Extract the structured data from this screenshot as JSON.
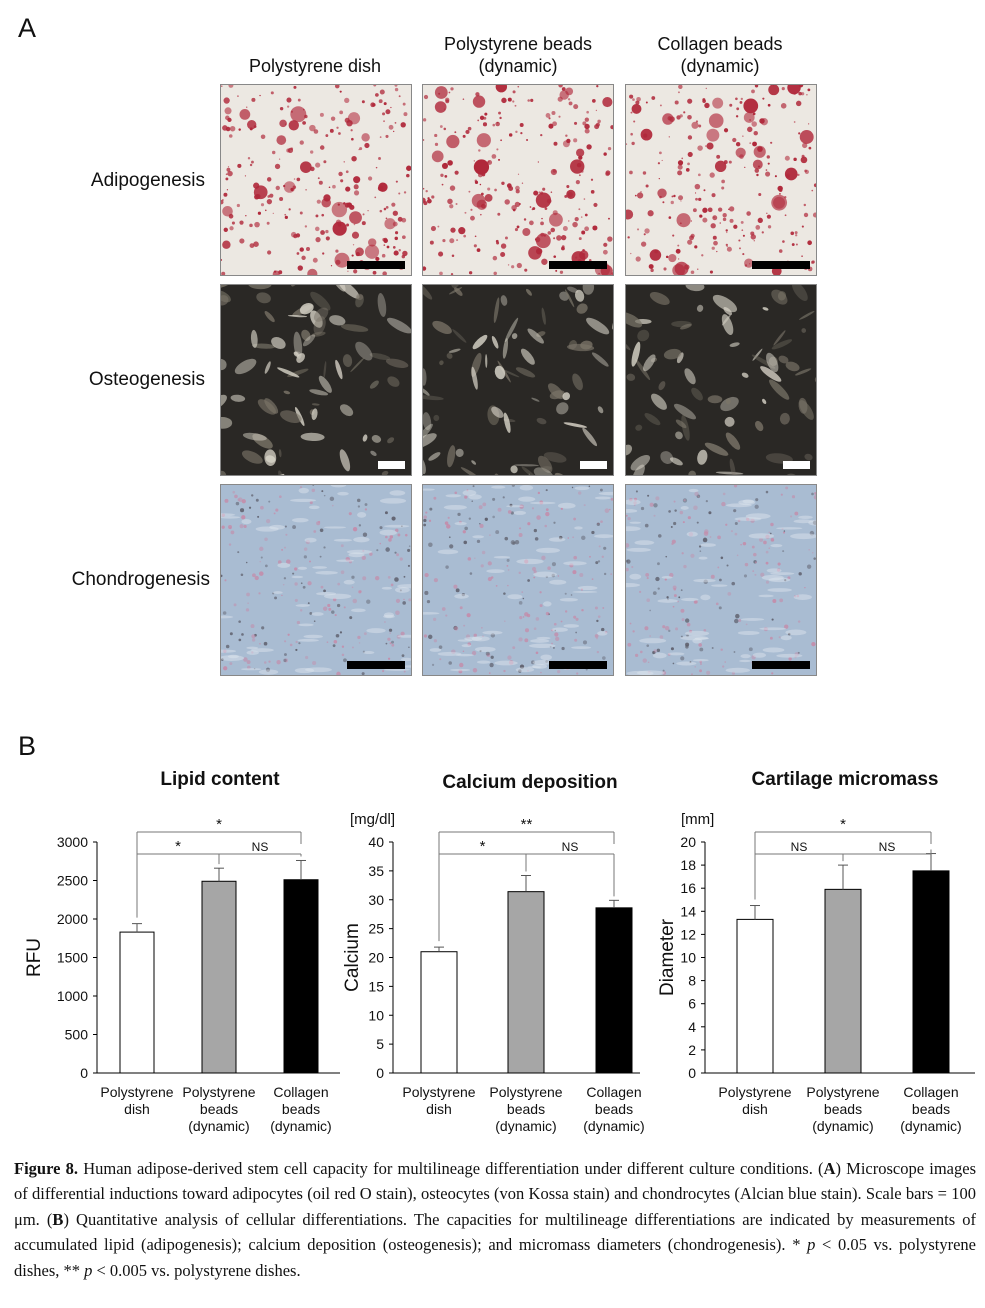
{
  "panel_a": {
    "letter": "A",
    "columns": [
      "Polystyrene dish",
      "Polystyrene beads\n(dynamic)",
      "Collagen beads\n(dynamic)"
    ],
    "rows": [
      "Adipogenesis",
      "Osteogenesis",
      "Chondrogenesis"
    ],
    "stain_colors": {
      "adipo_bg": "#ece8e2",
      "adipo_dot": "#b0283a",
      "osteo_bg": "#2a2825",
      "osteo_hi": "#d8d4c8",
      "chondro_bg": "#a9bcd2",
      "chondro_dot": "#c58aa8"
    }
  },
  "panel_b": {
    "letter": "B"
  },
  "chart_data": [
    {
      "type": "bar",
      "title": "Lipid content",
      "ylabel": "RFU",
      "unit": "",
      "categories": [
        "Polystyrene\ndish",
        "Polystyrene\nbeads\n(dynamic)",
        "Collagen\nbeads\n(dynamic)"
      ],
      "values": [
        1830,
        2490,
        2510
      ],
      "errors": [
        110,
        170,
        250
      ],
      "ylim": [
        0,
        3000
      ],
      "yticks": [
        0,
        500,
        1000,
        1500,
        2000,
        2500,
        3000
      ],
      "bar_colors": [
        "#ffffff",
        "#a6a6a6",
        "#000000"
      ],
      "brackets": [
        {
          "label": "*",
          "from": 0,
          "to": 1
        },
        {
          "label": "NS",
          "from": 1,
          "to": 2
        },
        {
          "label": "*",
          "from": 0,
          "to": 2
        }
      ]
    },
    {
      "type": "bar",
      "title": "Calcium deposition",
      "ylabel": "Calcium",
      "unit": "[mg/dl]",
      "categories": [
        "Polystyrene\ndish",
        "Polystyrene\nbeads\n(dynamic)",
        "Collagen\nbeads\n(dynamic)"
      ],
      "values": [
        21.0,
        31.4,
        28.6
      ],
      "errors": [
        0.8,
        2.8,
        1.3
      ],
      "ylim": [
        0,
        40
      ],
      "yticks": [
        0,
        5,
        10,
        15,
        20,
        25,
        30,
        35,
        40
      ],
      "bar_colors": [
        "#ffffff",
        "#a6a6a6",
        "#000000"
      ],
      "brackets": [
        {
          "label": "*",
          "from": 0,
          "to": 1
        },
        {
          "label": "NS",
          "from": 1,
          "to": 2
        },
        {
          "label": "**",
          "from": 0,
          "to": 2
        }
      ]
    },
    {
      "type": "bar",
      "title": "Cartilage micromass",
      "ylabel": "Diameter",
      "unit": "[mm]",
      "categories": [
        "Polystyrene\ndish",
        "Polystyrene\nbeads\n(dynamic)",
        "Collagen\nbeads\n(dynamic)"
      ],
      "values": [
        13.3,
        15.9,
        17.5
      ],
      "errors": [
        1.2,
        2.1,
        1.5
      ],
      "ylim": [
        0,
        20
      ],
      "yticks": [
        0,
        2,
        4,
        6,
        8,
        10,
        12,
        14,
        16,
        18,
        20
      ],
      "bar_colors": [
        "#ffffff",
        "#a6a6a6",
        "#000000"
      ],
      "brackets": [
        {
          "label": "NS",
          "from": 0,
          "to": 1
        },
        {
          "label": "NS",
          "from": 1,
          "to": 2
        },
        {
          "label": "*",
          "from": 0,
          "to": 2
        }
      ]
    }
  ],
  "caption": {
    "figure_label": "Figure 8.",
    "intro": " Human adipose-derived stem cell capacity for multilineage differentiation under different culture conditions. (",
    "a_label": "A",
    "a_text": ") Microscope images of differential inductions toward adipocytes (oil red O stain), osteocytes (von Kossa stain) and chondrocytes (Alcian blue stain).  Scale bars = 100 μm.  (",
    "b_label": "B",
    "b_text": ") Quantitative analysis of cellular differentiations.  The capacities for multilineage differentiations are indicated by measurements of accumulated lipid (adipogenesis); calcium deposition (osteogenesis); and micromass diameters (chondrogenesis). * ",
    "p1": "p",
    "p1_text": " < 0.05 vs. polystyrene dishes, ** ",
    "p2": "p",
    "p2_text": " < 0.005 vs. polystyrene dishes."
  }
}
